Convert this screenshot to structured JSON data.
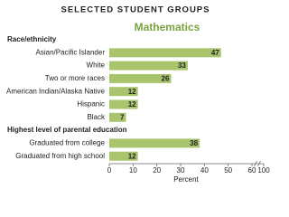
{
  "chart_data": {
    "type": "bar",
    "orientation": "horizontal",
    "title": "SELECTED STUDENT GROUPS",
    "subtitle": "Mathematics",
    "color": "#a8c56e",
    "x_label": "Percent",
    "groups": [
      {
        "name": "Race/ethnicity",
        "categories": [
          "Asian/Pacific Islander",
          "White",
          "Two or more races",
          "American Indian/Alaska Native",
          "Hispanic",
          "Black"
        ],
        "values": [
          47,
          33,
          26,
          12,
          12,
          7
        ]
      },
      {
        "name": "Highest level of parental education",
        "categories": [
          "Graduated from college",
          "Graduated from high school"
        ],
        "values": [
          38,
          12
        ]
      }
    ],
    "xlim": [
      0,
      60
    ],
    "xticks": [
      0,
      10,
      20,
      30,
      40,
      50,
      60,
      100
    ],
    "axis_break": true
  }
}
